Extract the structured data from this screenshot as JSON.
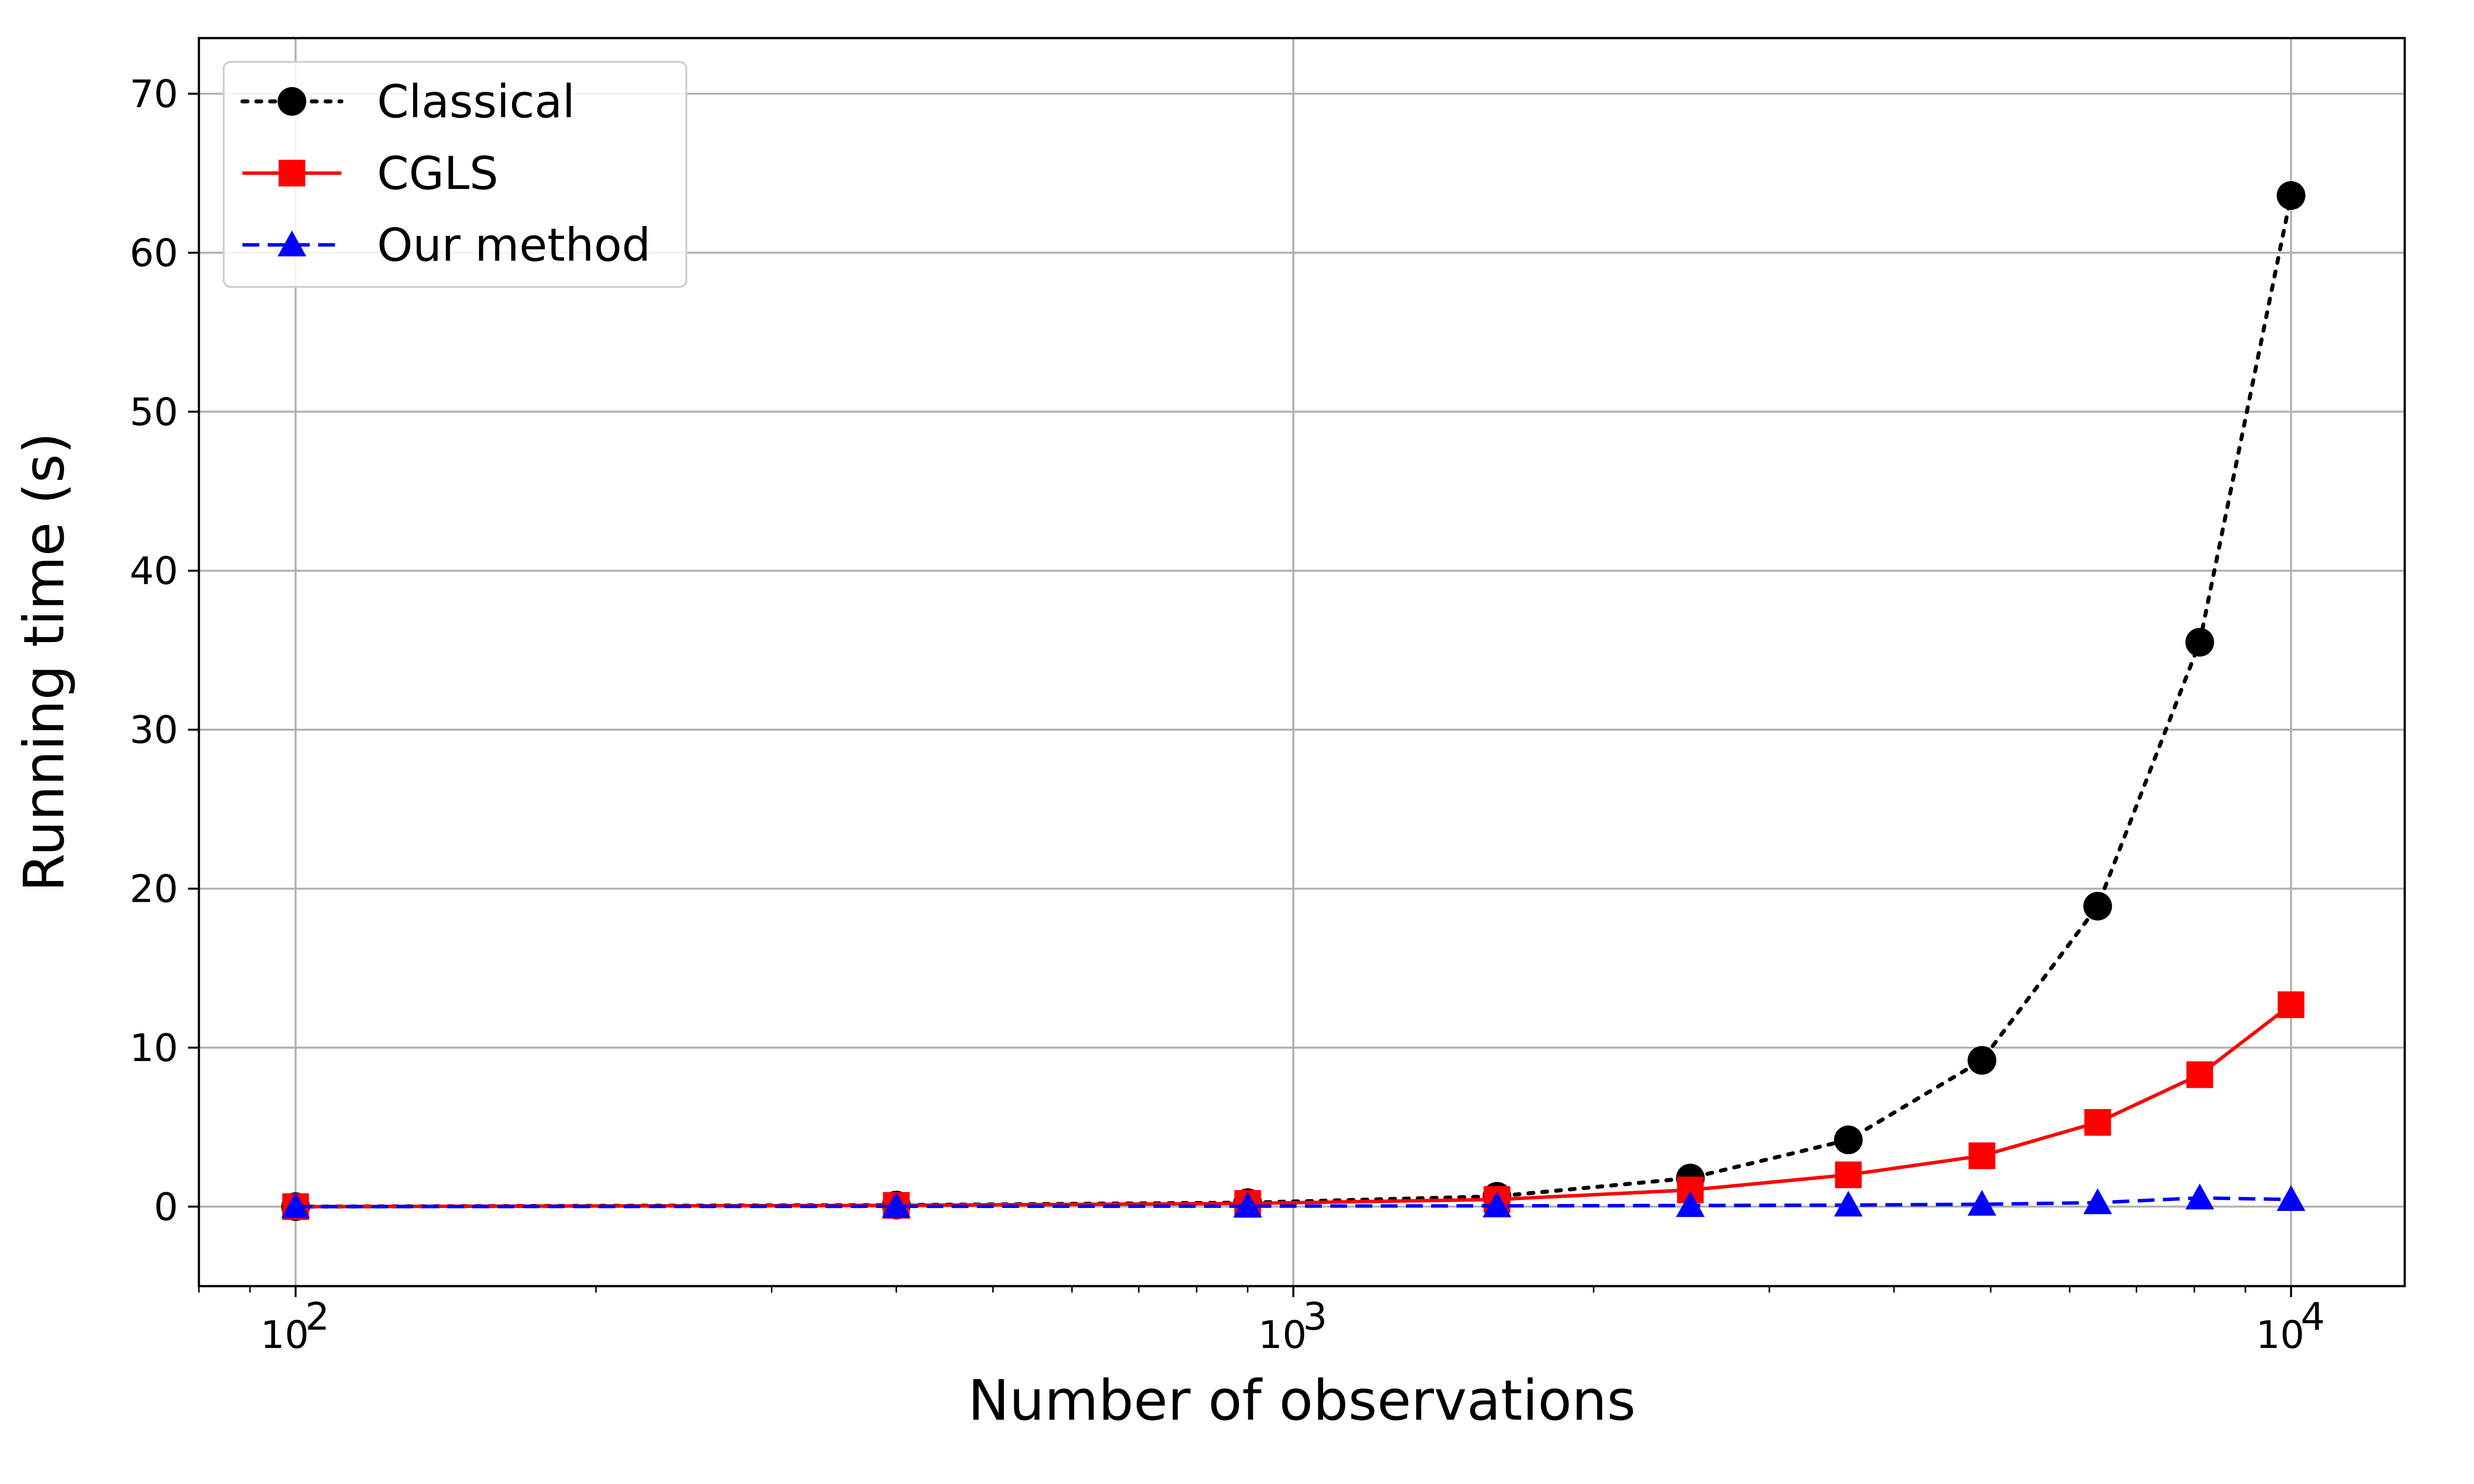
{
  "chart_data": {
    "type": "line",
    "xscale": "log",
    "grid": true,
    "legend_position": "upper-left",
    "xlabel": "Number of observations",
    "ylabel": "Running time (s)",
    "xlim": [
      80,
      13000
    ],
    "ylim": [
      -5,
      73.5
    ],
    "x_ticks": [
      {
        "value": 100,
        "base": "10",
        "exp": "2"
      },
      {
        "value": 1000,
        "base": "10",
        "exp": "3"
      },
      {
        "value": 10000,
        "base": "10",
        "exp": "4"
      }
    ],
    "y_ticks": [
      0,
      10,
      20,
      30,
      40,
      50,
      60,
      70
    ],
    "x": [
      100,
      400,
      900,
      1600,
      2500,
      3600,
      4900,
      6400,
      8100,
      10000
    ],
    "series": [
      {
        "name": "Classical",
        "color": "#000000",
        "marker": "circle",
        "line": "dotted",
        "values": [
          0.0,
          0.1,
          0.25,
          0.65,
          1.8,
          4.2,
          9.2,
          18.9,
          35.5,
          63.6
        ]
      },
      {
        "name": "CGLS",
        "color": "#ff0000",
        "marker": "square",
        "line": "solid",
        "values": [
          0.0,
          0.08,
          0.2,
          0.45,
          1.05,
          2.0,
          3.2,
          5.3,
          8.3,
          12.7
        ]
      },
      {
        "name": "Our method",
        "color": "#0000ff",
        "marker": "triangle",
        "line": "dashed",
        "values": [
          0.0,
          0.02,
          0.03,
          0.05,
          0.07,
          0.1,
          0.15,
          0.25,
          0.55,
          0.45
        ]
      }
    ]
  }
}
